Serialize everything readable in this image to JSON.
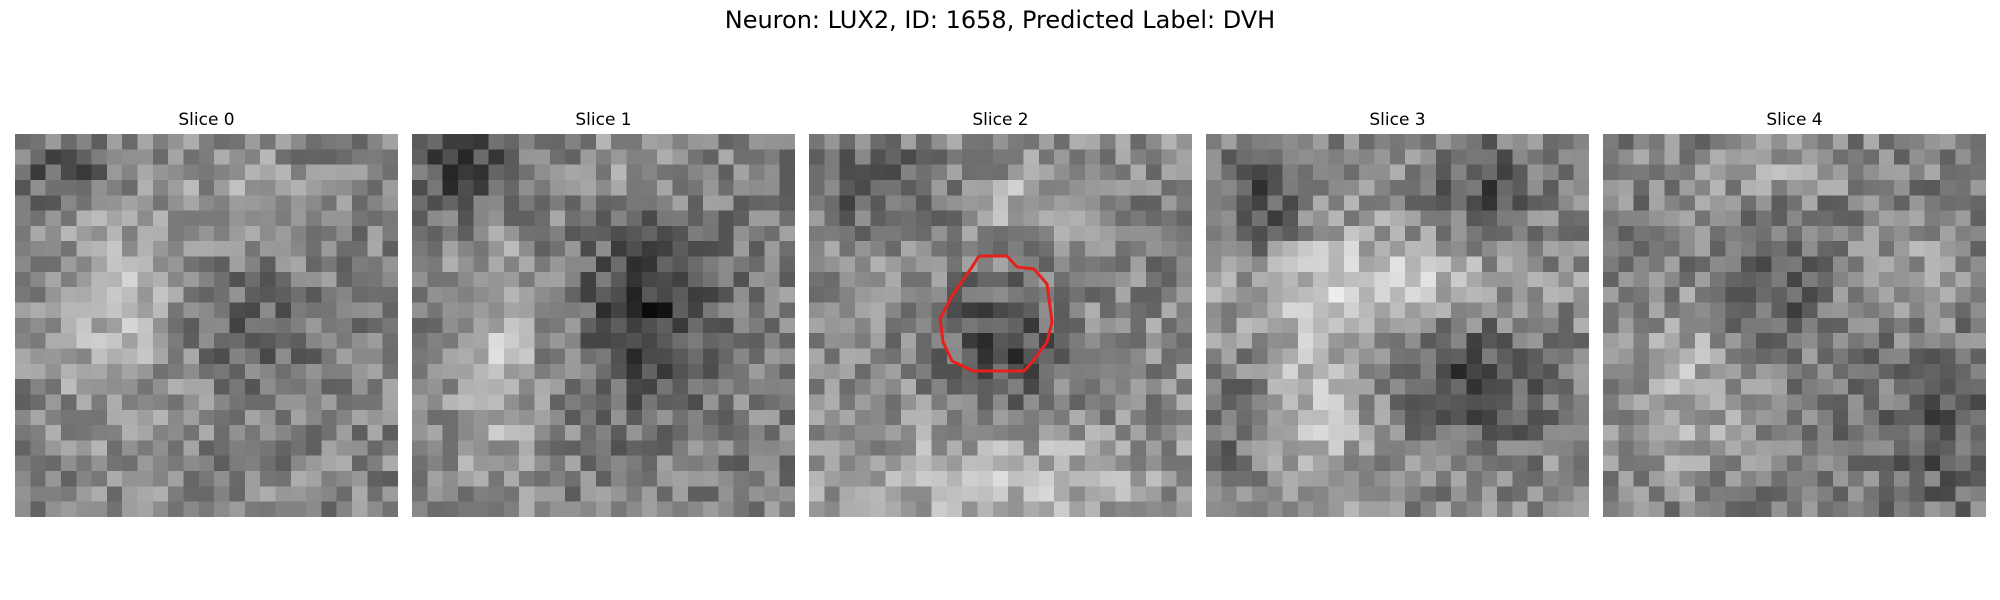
{
  "figure": {
    "title": "Neuron: LUX2, ID: 1658, Predicted Label: DVH"
  },
  "colors": {
    "background": "#ffffff",
    "roi_outline": "#e8201c"
  },
  "grid_size": 25,
  "panels": [
    {
      "title": "Slice 0",
      "has_roi": false
    },
    {
      "title": "Slice 1",
      "has_roi": false
    },
    {
      "title": "Slice 2",
      "has_roi": true
    },
    {
      "title": "Slice 3",
      "has_roi": false
    },
    {
      "title": "Slice 4",
      "has_roi": false
    }
  ]
}
